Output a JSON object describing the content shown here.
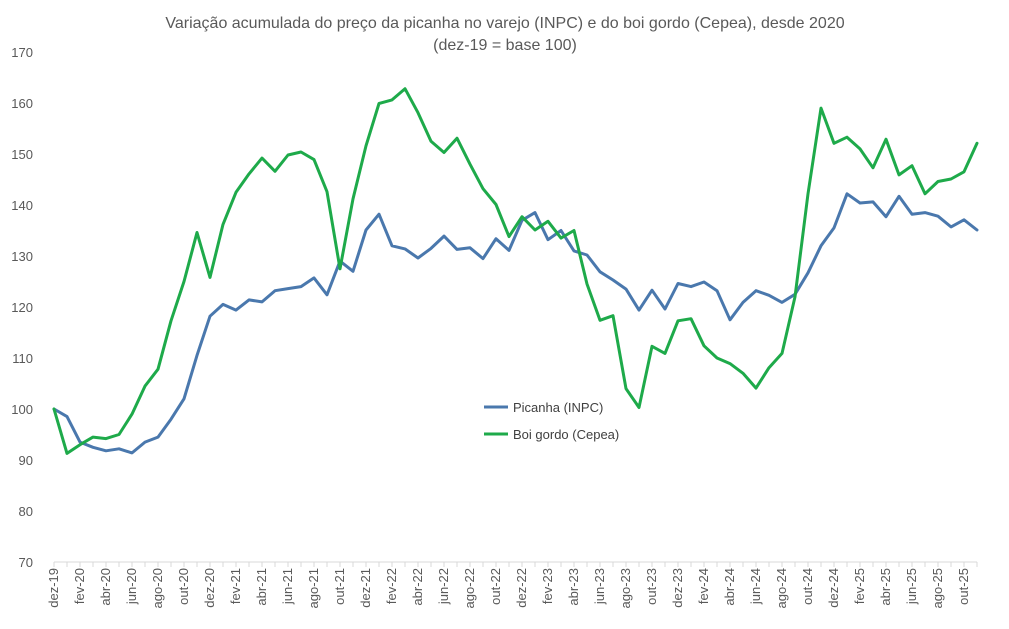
{
  "chart_data": {
    "type": "line",
    "title": "Variação acumulada do preço da picanha no varejo (INPC) e do boi gordo (Cepea), desde 2020",
    "subtitle": "(dez-19 = base 100)",
    "xlabel": "",
    "ylabel": "",
    "ylim": [
      70,
      170
    ],
    "yticks": [
      "70",
      "80",
      "90",
      "100",
      "110",
      "120",
      "130",
      "140",
      "150",
      "160",
      "170"
    ],
    "grid": false,
    "legend_position": "center",
    "categories": [
      "dez-19",
      "jan-20",
      "fev-20",
      "mar-20",
      "abr-20",
      "mai-20",
      "jun-20",
      "jul-20",
      "ago-20",
      "set-20",
      "out-20",
      "nov-20",
      "dez-20",
      "jan-21",
      "fev-21",
      "mar-21",
      "abr-21",
      "mai-21",
      "jun-21",
      "jul-21",
      "ago-21",
      "set-21",
      "out-21",
      "nov-21",
      "dez-21",
      "jan-22",
      "fev-22",
      "mar-22",
      "abr-22",
      "mai-22",
      "jun-22",
      "jul-22",
      "ago-22",
      "set-22",
      "out-22",
      "nov-22",
      "dez-22",
      "jan-23",
      "fev-23",
      "mar-23",
      "abr-23",
      "mai-23",
      "jun-23",
      "jul-23",
      "ago-23",
      "set-23",
      "out-23",
      "nov-23",
      "dez-23",
      "jan-24",
      "fev-24",
      "mar-24",
      "abr-24",
      "mai-24",
      "jun-24",
      "jul-24",
      "ago-24",
      "set-24",
      "out-24",
      "nov-24",
      "dez-24",
      "jan-25",
      "fev-25",
      "mar-25",
      "abr-25",
      "mai-25",
      "jun-25",
      "jul-25",
      "ago-25",
      "set-25",
      "out-25",
      "nov-25"
    ],
    "xtick_labels": [
      "dez-19",
      "fev-20",
      "abr-20",
      "jun-20",
      "ago-20",
      "out-20",
      "dez-20",
      "fev-21",
      "abr-21",
      "jun-21",
      "ago-21",
      "out-21",
      "dez-21",
      "fev-22",
      "abr-22",
      "jun-22",
      "ago-22",
      "out-22",
      "dez-22",
      "fev-23",
      "abr-23",
      "jun-23",
      "ago-23",
      "out-23",
      "dez-23",
      "fev-24",
      "abr-24",
      "jun-24",
      "ago-24",
      "out-24",
      "dez-24",
      "fev-25",
      "abr-25",
      "jun-25",
      "ago-25",
      "out-25"
    ],
    "series": [
      {
        "name": "Picanha (INPC)",
        "color": "#4a78ad",
        "values": [
          100,
          98.5,
          93.5,
          92.5,
          91.8,
          92.2,
          91.4,
          93.5,
          94.5,
          98,
          102,
          110.5,
          118.2,
          120.5,
          119.4,
          121.4,
          121,
          123.2,
          123.6,
          124,
          125.7,
          122.4,
          129,
          127,
          135.1,
          138.2,
          132,
          131.4,
          129.6,
          131.5,
          133.9,
          131.3,
          131.6,
          129.5,
          133.4,
          131.1,
          137,
          138.5,
          133.2,
          135,
          131,
          130.2,
          126.9,
          125.3,
          123.5,
          119.4,
          123.3,
          119.6,
          124.6,
          124,
          124.9,
          123.2,
          117.5,
          120.9,
          123.2,
          122.3,
          120.9,
          122.5,
          126.7,
          132,
          135.5,
          142.2,
          140.4,
          140.6,
          137.7,
          141.7,
          138.2,
          138.5,
          137.8,
          135.7,
          137.1,
          135.1
        ]
      },
      {
        "name": "Boi gordo (Cepea)",
        "color": "#1eaa4a",
        "values": [
          100,
          91.3,
          93,
          94.5,
          94.2,
          95,
          99,
          104.5,
          107.8,
          117.3,
          125,
          134.6,
          125.8,
          136.2,
          142.5,
          146.1,
          149.2,
          146.6,
          149.8,
          150.4,
          148.9,
          142.6,
          127.5,
          141.2,
          151.6,
          159.9,
          160.6,
          162.8,
          158.1,
          152.5,
          150.3,
          153.1,
          148,
          143.2,
          140.1,
          133.8,
          137.7,
          135.1,
          136.8,
          133.5,
          135,
          124.5,
          117.4,
          118.3,
          104,
          100.3,
          112.3,
          110.9,
          117.3,
          117.7,
          112.4,
          110,
          108.9,
          107,
          104.1,
          108.1,
          110.9,
          122,
          142.2,
          159,
          152.1,
          153.3,
          151,
          147.3,
          152.9,
          145.9,
          147.7,
          142.2,
          144.6,
          145.1,
          146.5,
          152.1
        ]
      }
    ]
  }
}
